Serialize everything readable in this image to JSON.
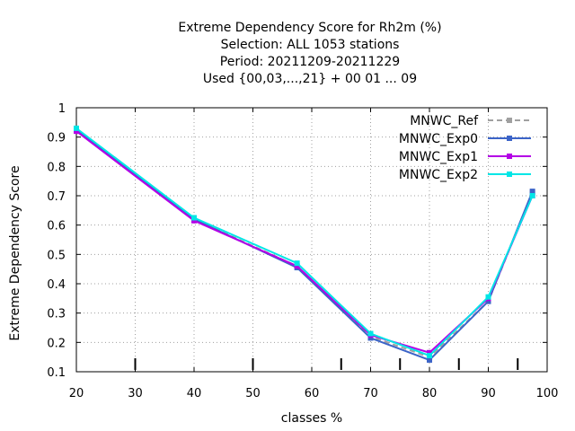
{
  "chart_data": {
    "type": "line",
    "title_lines": [
      "Extreme Dependency Score  for Rh2m (%)",
      "Selection: ALL   1053 stations",
      "Period: 20211209-20211229",
      "Used {00,03,...,21} + 00 01 ... 09"
    ],
    "xlabel": "classes %",
    "ylabel": "Extreme Dependency Score",
    "xlim": [
      20,
      100
    ],
    "ylim": [
      0.1,
      1.0
    ],
    "xticks": [
      20,
      30,
      40,
      50,
      60,
      70,
      80,
      90,
      100
    ],
    "yticks": [
      0.1,
      0.2,
      0.3,
      0.4,
      0.5,
      0.6,
      0.7,
      0.8,
      0.9,
      1.0
    ],
    "ytick_labels": [
      "0.1",
      "0.2",
      "0.3",
      "0.4",
      "0.5",
      "0.6",
      "0.7",
      "0.8",
      "0.9",
      "1"
    ],
    "class_marks": [
      30,
      50,
      65,
      75,
      85,
      95
    ],
    "grid": true,
    "legend_position": "top-right",
    "x": [
      20,
      40,
      57.5,
      70,
      80,
      90,
      97.5
    ],
    "series": [
      {
        "name": "MNWC_Ref",
        "color": "#a0a0a0",
        "dashed": true,
        "values": [
          0.925,
          0.62,
          0.46,
          0.22,
          0.15,
          0.34,
          0.71
        ]
      },
      {
        "name": "MNWC_Exp0",
        "color": "#3c64c8",
        "dashed": false,
        "values": [
          0.925,
          0.62,
          0.455,
          0.215,
          0.14,
          0.34,
          0.715
        ]
      },
      {
        "name": "MNWC_Exp1",
        "color": "#b400e6",
        "dashed": false,
        "values": [
          0.92,
          0.615,
          0.46,
          0.225,
          0.165,
          0.35,
          0.7
        ]
      },
      {
        "name": "MNWC_Exp2",
        "color": "#00e6e6",
        "dashed": false,
        "values": [
          0.93,
          0.625,
          0.47,
          0.23,
          0.155,
          0.355,
          0.7
        ]
      }
    ]
  }
}
